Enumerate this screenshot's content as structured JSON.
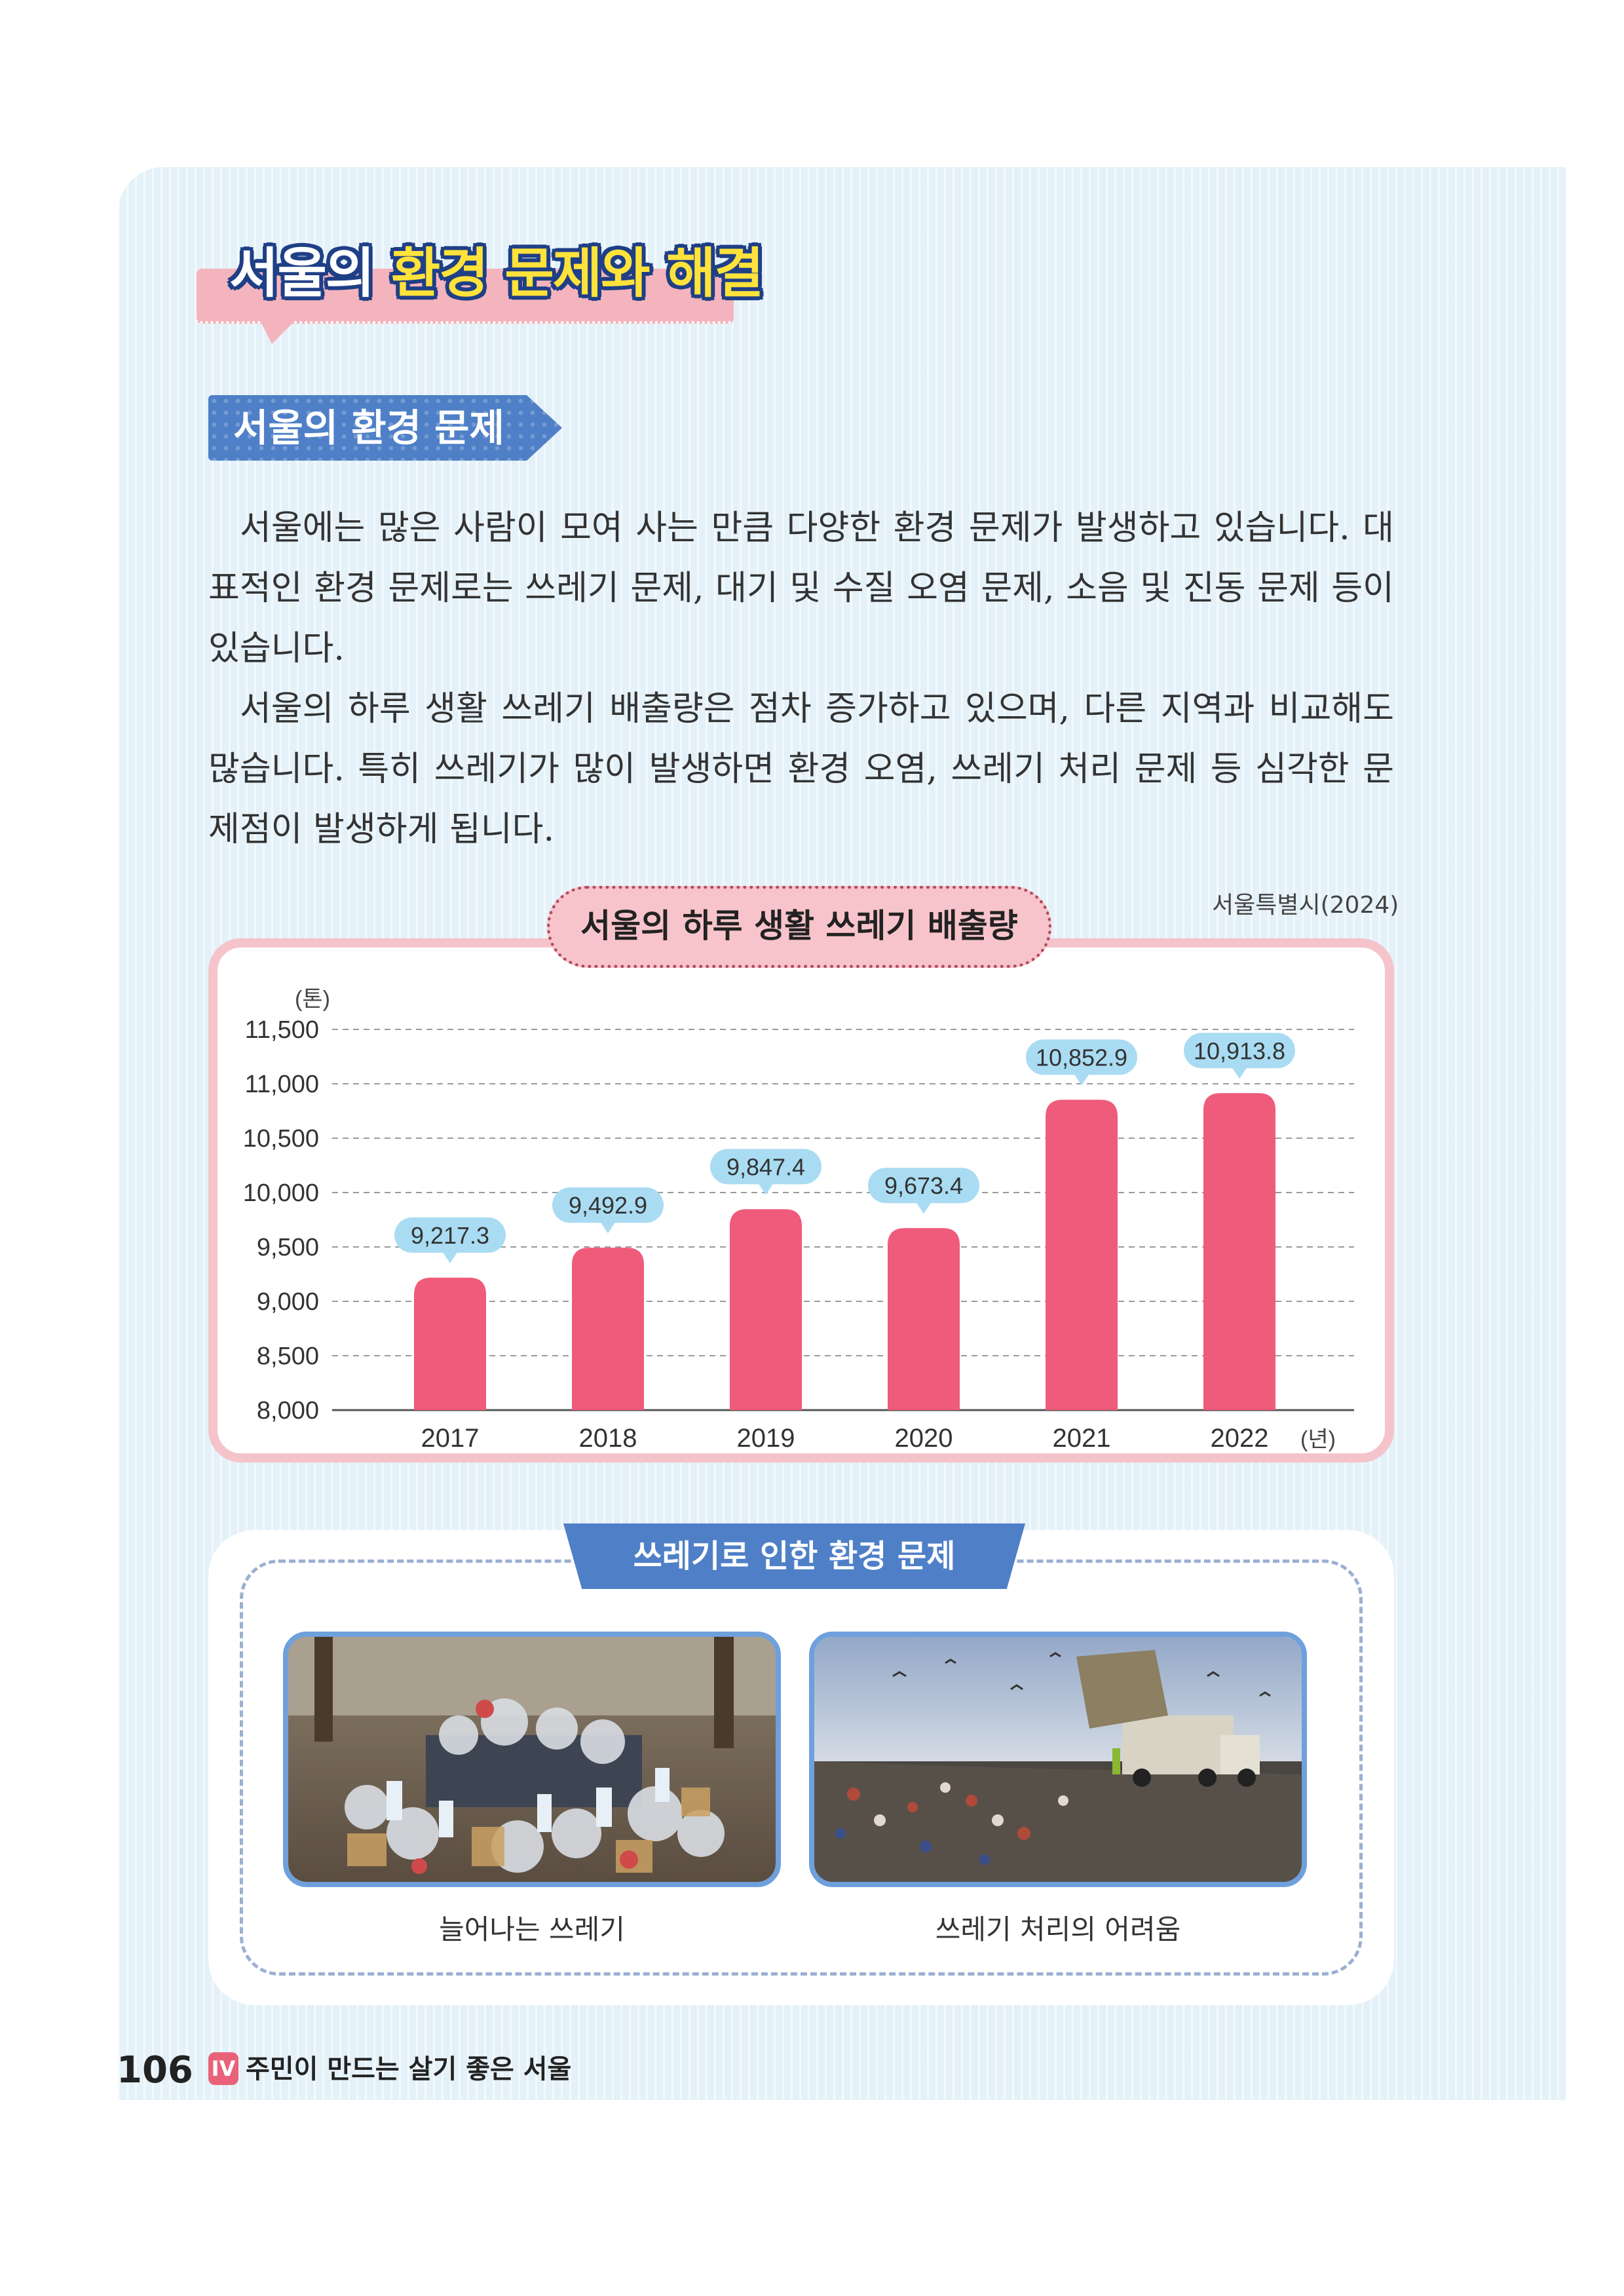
{
  "header": {
    "title_part1": "서울의",
    "title_part2": "환경 문제와 해결"
  },
  "section": {
    "heading": "서울의 환경 문제"
  },
  "body": {
    "paragraph1": "서울에는 많은 사람이 모여 사는 만큼 다양한 환경 문제가 발생하고 있습니다. 대표적인 환경 문제로는 쓰레기 문제, 대기 및 수질 오염 문제, 소음 및 진동 문제 등이 있습니다.",
    "paragraph2": "서울의 하루 생활 쓰레기 배출량은 점차 증가하고 있으며, 다른 지역과 비교해도 많습니다. 특히 쓰레기가 많이 발생하면 환경 오염, 쓰레기 처리 문제 등 심각한 문제점이 발생하게 됩니다."
  },
  "chart_data": {
    "type": "bar",
    "title": "서울의 하루 생활 쓰레기 배출량",
    "source": "서울특별시(2024)",
    "ylabel": "(톤)",
    "xlabel": "(년)",
    "categories": [
      "2017",
      "2018",
      "2019",
      "2020",
      "2021",
      "2022"
    ],
    "values": [
      9217.3,
      9492.9,
      9847.4,
      9673.4,
      10852.9,
      10913.8
    ],
    "value_labels": [
      "9,217.3",
      "9,492.9",
      "9,847.4",
      "9,673.4",
      "10,852.9",
      "10,913.8"
    ],
    "ylim": [
      8000,
      11500
    ],
    "yticks": [
      8000,
      8500,
      9000,
      9500,
      10000,
      10500,
      11000,
      11500
    ],
    "ytick_labels": [
      "8,000",
      "8,500",
      "9,000",
      "9,500",
      "10,000",
      "10,500",
      "11,000",
      "11,500"
    ],
    "grid": true,
    "bar_color": "#ef5b7a",
    "label_bubble_color": "#a9dcf2"
  },
  "trash": {
    "heading": "쓰레기로 인한 환경 문제",
    "photo1_caption": "늘어나는 쓰레기",
    "photo2_caption": "쓰레기 처리의 어려움"
  },
  "footer": {
    "page_number": "106",
    "chapter_badge": "IV",
    "chapter_title": "주민이 만드는 살기 좋은 서울"
  },
  "colors": {
    "accent_blue": "#4f80c7",
    "pink": "#f5c4cb",
    "bar": "#ef5b7a"
  }
}
